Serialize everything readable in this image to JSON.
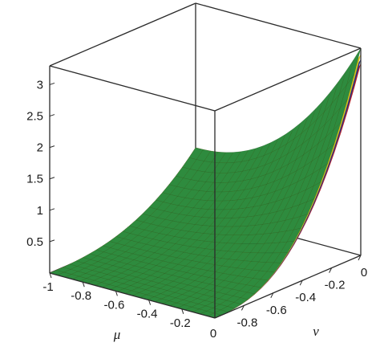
{
  "chart_data": {
    "type": "surface3d",
    "title": "",
    "x_axis": {
      "label": "μ",
      "range": [
        -1,
        0
      ],
      "ticks": [
        "-1",
        "-0.8",
        "-0.6",
        "-0.4",
        "-0.2"
      ]
    },
    "y_axis": {
      "label": "ν",
      "range": [
        -1,
        0
      ],
      "ticks": [
        "-0.8",
        "-0.6",
        "-0.4",
        "-0.2",
        "0"
      ]
    },
    "z_axis": {
      "label": "",
      "range": [
        0,
        3.3
      ],
      "ticks": [
        "0.5",
        "1",
        "1.5",
        "2",
        "2.5",
        "3"
      ]
    },
    "corner_label": "0",
    "surfaces": [
      {
        "color": "#b0202a",
        "role": "lowest layer",
        "corners": {
          "mu-1_nu-1": 0.0,
          "mu0_nu-1": 0.0,
          "mu-1_nu0": 1.0,
          "mu0_nu0": 3.05
        }
      },
      {
        "color": "#1f2f8a",
        "role": "second layer",
        "corners": {
          "mu-1_nu-1": 0.0,
          "mu0_nu-1": 0.0,
          "mu-1_nu0": 1.0,
          "mu0_nu0": 3.12
        }
      },
      {
        "color": "#d8c21a",
        "role": "third layer",
        "corners": {
          "mu-1_nu-1": 0.0,
          "mu0_nu-1": 0.0,
          "mu-1_nu0": 1.0,
          "mu0_nu0": 3.2
        }
      },
      {
        "color": "#2e8b3e",
        "role": "top visible surface",
        "corners": {
          "mu-1_nu-1": 0.0,
          "mu0_nu-1": 0.0,
          "mu-1_nu0": 1.0,
          "mu0_nu0": 3.3
        }
      }
    ],
    "grid": false,
    "box": true
  }
}
